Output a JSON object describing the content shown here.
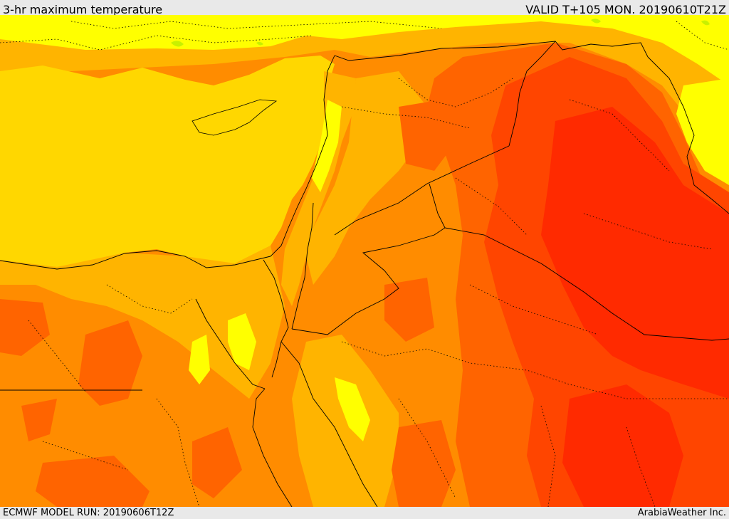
{
  "header": {
    "title": "3-hr maximum temperature",
    "valid": "VALID T+105 MON. 20190610T21Z"
  },
  "footer": {
    "model_run": "ECMWF MODEL RUN: 20190606T12Z",
    "credit": "ArabiaWeather Inc."
  },
  "colors": {
    "sea": "#ffd700",
    "yellow": "#ffff00",
    "light_orange": "#ffb400",
    "orange": "#ff8c00",
    "dark_orange": "#ff6400",
    "red_orange": "#ff4500",
    "red": "#ff2a00",
    "border": "#000000",
    "greenish": "#c8f000"
  }
}
